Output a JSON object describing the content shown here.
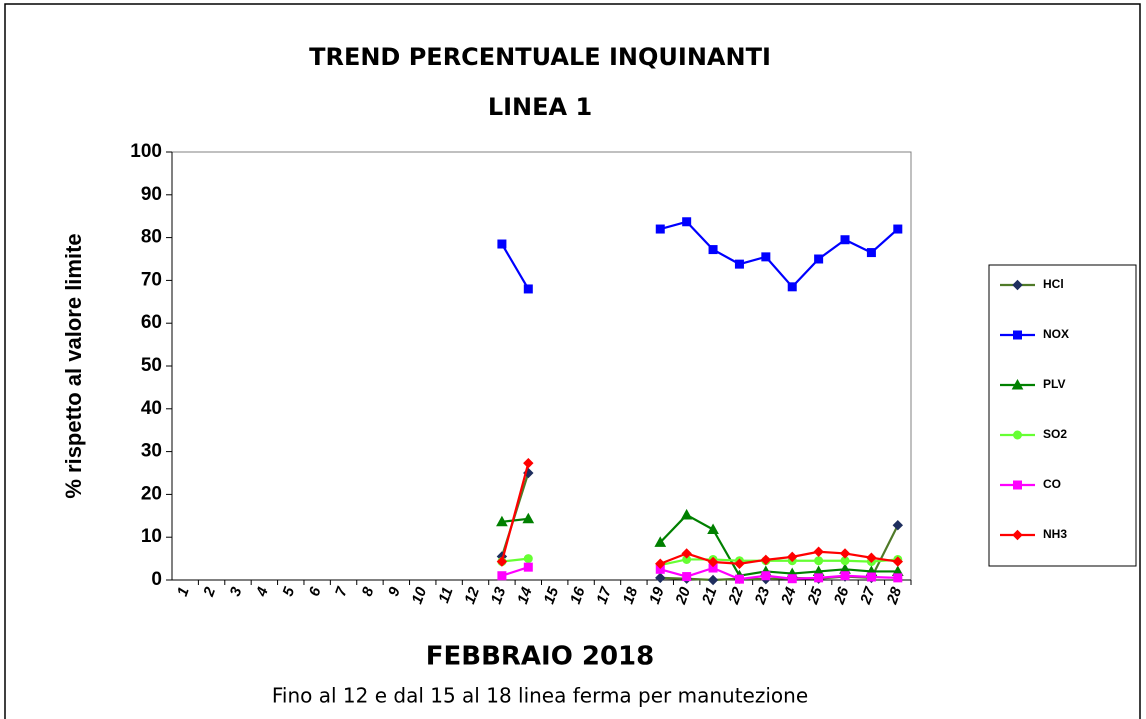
{
  "chart_data": {
    "type": "line",
    "title": "TREND PERCENTUALE INQUINANTI",
    "subtitle": "LINEA 1",
    "y_label": "% rispetto al valore limite",
    "x_label": "FEBBRAIO 2018",
    "note": "Fino al 12 e dal 15 al 18 linea ferma per manutezione",
    "categories": [
      "1",
      "2",
      "3",
      "4",
      "5",
      "6",
      "7",
      "8",
      "9",
      "10",
      "11",
      "12",
      "13",
      "14",
      "15",
      "16",
      "17",
      "18",
      "19",
      "20",
      "21",
      "22",
      "23",
      "24",
      "25",
      "26",
      "27",
      "28"
    ],
    "ylim": [
      0,
      100
    ],
    "yticks": [
      0,
      10,
      20,
      30,
      40,
      50,
      60,
      70,
      80,
      90,
      100
    ],
    "grid": false,
    "legend": "right",
    "series": [
      {
        "name": "HCl",
        "color": "#4f7a28",
        "marker": "diamond",
        "marker_color": "#1f2f5f",
        "values": [
          null,
          null,
          null,
          null,
          null,
          null,
          null,
          null,
          null,
          null,
          null,
          null,
          5.5,
          25,
          null,
          null,
          null,
          null,
          0.5,
          0.3,
          0,
          0.3,
          0.2,
          0.5,
          0.3,
          0.8,
          0.5,
          12.8
        ]
      },
      {
        "name": "NOX",
        "color": "#0000ff",
        "marker": "square",
        "marker_color": "#0000ff",
        "values": [
          null,
          null,
          null,
          null,
          null,
          null,
          null,
          null,
          null,
          null,
          null,
          null,
          78.5,
          68,
          null,
          null,
          null,
          null,
          82,
          83.7,
          77.2,
          73.8,
          75.5,
          68.5,
          75,
          79.5,
          76.5,
          82
        ]
      },
      {
        "name": "PLV",
        "color": "#008000",
        "marker": "triangle",
        "marker_color": "#008000",
        "values": [
          null,
          null,
          null,
          null,
          null,
          null,
          null,
          null,
          null,
          null,
          null,
          null,
          13.6,
          14.3,
          null,
          null,
          null,
          null,
          8.8,
          15.2,
          11.8,
          1,
          2,
          1.5,
          2,
          2.5,
          2,
          2
        ]
      },
      {
        "name": "SO2",
        "color": "#66ff33",
        "marker": "circle",
        "marker_color": "#66ff33",
        "values": [
          null,
          null,
          null,
          null,
          null,
          null,
          null,
          null,
          null,
          null,
          null,
          null,
          4.3,
          5,
          null,
          null,
          null,
          null,
          3.5,
          4.8,
          4.8,
          4.5,
          4.5,
          4.5,
          4.5,
          4.5,
          4.3,
          4.8
        ]
      },
      {
        "name": "CO",
        "color": "#ff00ff",
        "marker": "square",
        "marker_color": "#ff00ff",
        "values": [
          null,
          null,
          null,
          null,
          null,
          null,
          null,
          null,
          null,
          null,
          null,
          null,
          1,
          3,
          null,
          null,
          null,
          null,
          2.5,
          0.8,
          2.8,
          0.2,
          1,
          0.3,
          0.5,
          1,
          0.7,
          0.5
        ]
      },
      {
        "name": "NH3",
        "color": "#ff0000",
        "marker": "diamond",
        "marker_color": "#ff0000",
        "values": [
          null,
          null,
          null,
          null,
          null,
          null,
          null,
          null,
          null,
          null,
          null,
          null,
          4.3,
          27.3,
          null,
          null,
          null,
          null,
          3.8,
          6.2,
          4.2,
          3.8,
          4.7,
          5.4,
          6.6,
          6.2,
          5.2,
          4.3
        ]
      }
    ]
  }
}
